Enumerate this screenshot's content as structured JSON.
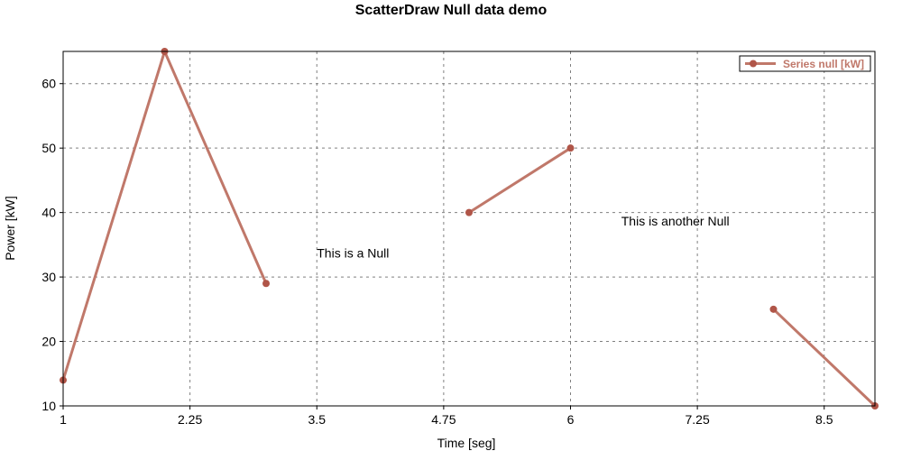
{
  "chart_data": {
    "type": "line",
    "title": "ScatterDraw Null data demo",
    "xlabel": "Time [seg]",
    "ylabel": "Power [kW]",
    "xlim": [
      1,
      9
    ],
    "ylim": [
      10,
      65
    ],
    "x_ticks": [
      1,
      2.25,
      3.5,
      4.75,
      6,
      7.25,
      8.5
    ],
    "x_tick_labels": [
      "1",
      "2.25",
      "3.5",
      "4.75",
      "6",
      "7.25",
      "8.5"
    ],
    "y_ticks": [
      10,
      20,
      30,
      40,
      50,
      60
    ],
    "y_tick_labels": [
      "10",
      "20",
      "30",
      "40",
      "50",
      "60"
    ],
    "grid": true,
    "legend_position": "top-right",
    "series": [
      {
        "name": "Series null [kW]",
        "color": "#c0786a",
        "marker_color": "#b05548",
        "points": [
          {
            "x": 1,
            "y": 14
          },
          {
            "x": 2,
            "y": 65
          },
          {
            "x": 3,
            "y": 29
          },
          {
            "x": 4,
            "y": null
          },
          {
            "x": 5,
            "y": 40
          },
          {
            "x": 6,
            "y": 50
          },
          {
            "x": 7,
            "y": null
          },
          {
            "x": 8,
            "y": 25
          },
          {
            "x": 9,
            "y": 10
          }
        ]
      }
    ],
    "annotations": [
      {
        "text": "This is a Null",
        "x": 3.5,
        "y": 33
      },
      {
        "text": "This is another Null",
        "x": 6.5,
        "y": 38
      }
    ]
  }
}
